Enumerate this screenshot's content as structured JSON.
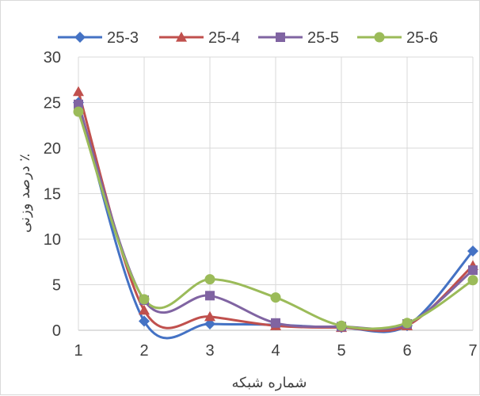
{
  "chart_data": {
    "type": "line",
    "title": "",
    "xlabel": "شماره شبکه",
    "ylabel": "درصد وزنی ٪",
    "categories": [
      "1",
      "2",
      "3",
      "4",
      "5",
      "6",
      "7"
    ],
    "ylim": [
      0,
      30
    ],
    "yticks": [
      "0",
      "5",
      "10",
      "15",
      "20",
      "25",
      "30"
    ],
    "grid": true,
    "smooth": true,
    "legend_position": "top",
    "series": [
      {
        "name": "25-3",
        "color": "#4472c4",
        "marker": "diamond",
        "values": [
          25.0,
          1.0,
          0.7,
          0.6,
          0.3,
          0.5,
          8.7
        ]
      },
      {
        "name": "25-4",
        "color": "#c0504d",
        "marker": "triangle",
        "values": [
          26.2,
          2.2,
          1.5,
          0.5,
          0.3,
          0.5,
          7.1
        ]
      },
      {
        "name": "25-5",
        "color": "#8064a2",
        "marker": "square",
        "values": [
          24.8,
          3.3,
          3.8,
          0.8,
          0.4,
          0.7,
          6.6
        ]
      },
      {
        "name": "25-6",
        "color": "#9bbb59",
        "marker": "circle",
        "values": [
          24.0,
          3.4,
          5.6,
          3.6,
          0.5,
          0.8,
          5.5
        ]
      }
    ]
  }
}
